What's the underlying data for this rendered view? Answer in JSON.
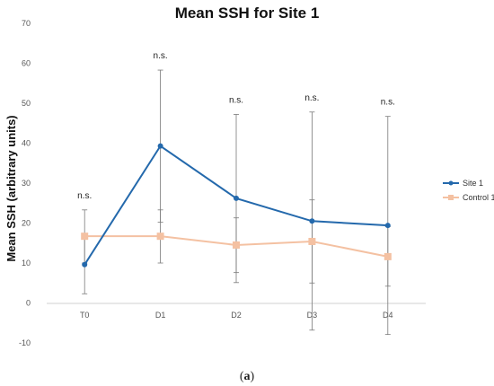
{
  "chart_data": {
    "type": "line",
    "title": "Mean SSH for Site 1",
    "ylabel": "Mean SSH (arbitrary units)",
    "xlabel": "",
    "categories": [
      "T0",
      "D1",
      "D2",
      "D3",
      "D4"
    ],
    "yticks": [
      -10,
      0,
      10,
      20,
      30,
      40,
      50,
      60,
      70
    ],
    "ylim": [
      -10,
      70
    ],
    "grid": false,
    "legend_position": "right",
    "series": [
      {
        "name": "Site 1",
        "color": "#2469ac",
        "marker": "circle",
        "values": [
          9.6,
          39.3,
          26.2,
          20.5,
          19.4
        ],
        "error_low": [
          2.3,
          20.2,
          5.1,
          -6.8,
          -7.9
        ],
        "error_high": [
          16.9,
          58.3,
          47.2,
          47.8,
          46.7
        ]
      },
      {
        "name": "Control 1",
        "color": "#f4c1a2",
        "marker": "square",
        "values": [
          16.7,
          16.7,
          14.5,
          15.4,
          11.6
        ],
        "error_low": [
          10.0,
          10.0,
          7.6,
          5.0,
          4.2
        ],
        "error_high": [
          23.3,
          23.3,
          21.3,
          25.8,
          19.1
        ]
      }
    ],
    "annotations": [
      "n.s.",
      "n.s.",
      "n.s.",
      "n.s.",
      "n.s."
    ]
  },
  "caption": {
    "open": "(",
    "letter": "a",
    "close": ")"
  }
}
